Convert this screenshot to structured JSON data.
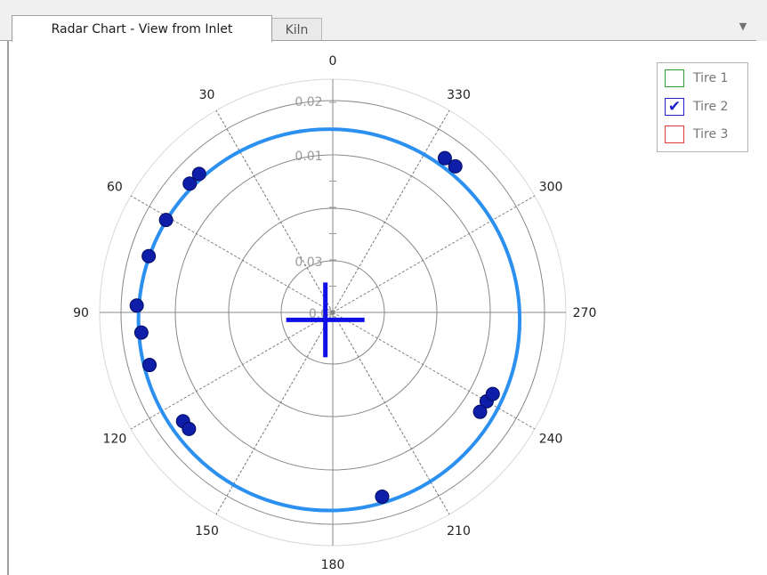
{
  "tabs": [
    {
      "label": "Radar Chart - View from Inlet",
      "active": true
    },
    {
      "label": "Kiln",
      "active": false
    }
  ],
  "dropdown_icon": "chevron-down-icon",
  "legend": {
    "items": [
      {
        "label": "Tire 1",
        "color": "#2e9e3a",
        "checked": false
      },
      {
        "label": "Tire 2",
        "color": "#2222cc",
        "checked": true
      },
      {
        "label": "Tire 3",
        "color": "#e03b3b",
        "checked": false
      }
    ],
    "check_glyph": "✔"
  },
  "chart_data": {
    "type": "radar",
    "angle_labels": [
      "0",
      "30",
      "60",
      "90",
      "120",
      "150",
      "180",
      "210",
      "240",
      "270",
      "300",
      "330"
    ],
    "angle_direction": "counterclockwise-from-top",
    "radial_tick_labels": [
      "0.02",
      "0.01",
      "0.03",
      "0.0k"
    ],
    "colors": {
      "grid": "#888888",
      "outer_ring": "#d8d8d8",
      "fit_circle": "#2b90f0",
      "points": "#0e1ea8",
      "center_mark": "#1010e6"
    },
    "fit_circle": {
      "center_offset": [
        -0.2,
        0.4
      ],
      "radius": 10.3
    },
    "center_mark": {
      "x": -0.4,
      "y": 0.4
    },
    "series": [
      {
        "name": "Tire 2",
        "points": [
          {
            "angle": 324,
            "r": 10.3
          },
          {
            "angle": 320,
            "r": 10.3
          },
          {
            "angle": 44,
            "r": 10.4
          },
          {
            "angle": 48,
            "r": 10.4
          },
          {
            "angle": 61,
            "r": 10.3
          },
          {
            "angle": 73,
            "r": 10.4
          },
          {
            "angle": 88,
            "r": 10.6
          },
          {
            "angle": 96,
            "r": 10.4
          },
          {
            "angle": 106,
            "r": 10.3
          },
          {
            "angle": 126,
            "r": 10.0
          },
          {
            "angle": 129,
            "r": 10.0
          },
          {
            "angle": 195,
            "r": 10.3
          },
          {
            "angle": 240,
            "r": 9.6
          },
          {
            "angle": 236,
            "r": 9.6
          },
          {
            "angle": 243,
            "r": 9.7
          }
        ]
      }
    ]
  }
}
